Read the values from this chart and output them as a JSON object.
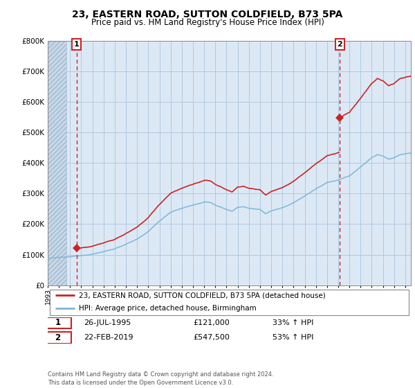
{
  "title": "23, EASTERN ROAD, SUTTON COLDFIELD, B73 5PA",
  "subtitle": "Price paid vs. HM Land Registry's House Price Index (HPI)",
  "hpi_label": "HPI: Average price, detached house, Birmingham",
  "price_label": "23, EASTERN ROAD, SUTTON COLDFIELD, B73 5PA (detached house)",
  "annotation1": {
    "num": "1",
    "date": "26-JUL-1995",
    "price": "£121,000",
    "pct": "33% ↑ HPI"
  },
  "annotation2": {
    "num": "2",
    "date": "22-FEB-2019",
    "price": "£547,500",
    "pct": "53% ↑ HPI"
  },
  "footer": "Contains HM Land Registry data © Crown copyright and database right 2024.\nThis data is licensed under the Open Government Licence v3.0.",
  "sale1_year": 1995.57,
  "sale1_price": 121000,
  "sale2_year": 2019.14,
  "sale2_price": 547500,
  "hpi_color": "#7ab5d8",
  "price_color": "#cc2222",
  "sale_marker_color": "#cc2222",
  "dashed_color": "#cc2222",
  "chart_bg": "#dce9f5",
  "hatch_bg": "#c8d8e8",
  "grid_color": "#b0c8e0",
  "ylim": [
    0,
    800000
  ],
  "xlim_start": 1993.0,
  "xlim_end": 2025.5
}
